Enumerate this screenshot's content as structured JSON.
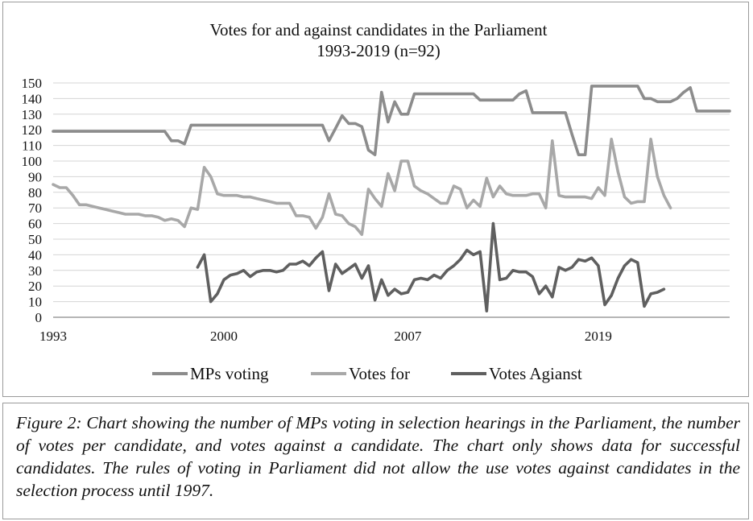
{
  "caption": "Figure 2: Chart showing the number of MPs voting in selection hearings in the Parliament, the number of votes per candidate, and votes against a candidate. The chart only shows data for successful candidates. The rules of voting in Parliament did not allow the use votes against candidates in the selection process until 1997.",
  "chart_data": {
    "type": "line",
    "title": "Votes for and against candidates in the Parliament",
    "subtitle": "1993-2019 (n=92)",
    "xlabel": "",
    "ylabel": "",
    "ylim": [
      0,
      150
    ],
    "yticks": [
      0,
      10,
      20,
      30,
      40,
      50,
      60,
      70,
      80,
      90,
      100,
      110,
      120,
      130,
      140,
      150
    ],
    "xtick_labels": [
      {
        "index": 0,
        "label": "1993"
      },
      {
        "index": 26,
        "label": "2000"
      },
      {
        "index": 54,
        "label": "2007"
      },
      {
        "index": 83,
        "label": "2019"
      }
    ],
    "n_points": 104,
    "grid": true,
    "legend_position": "bottom",
    "series": [
      {
        "name": "MPs voting",
        "color": "#8c8c8c",
        "start_index": 0,
        "values": [
          119,
          119,
          119,
          119,
          119,
          119,
          119,
          119,
          119,
          119,
          119,
          119,
          119,
          119,
          119,
          119,
          119,
          119,
          113,
          113,
          111,
          123,
          123,
          123,
          123,
          123,
          123,
          123,
          123,
          123,
          123,
          123,
          123,
          123,
          123,
          123,
          123,
          123,
          123,
          123,
          123,
          123,
          113,
          121,
          129,
          124,
          124,
          122,
          107,
          104,
          144,
          125,
          138,
          130,
          130,
          143,
          143,
          143,
          143,
          143,
          143,
          143,
          143,
          143,
          143,
          139,
          139,
          139,
          139,
          139,
          139,
          143,
          145,
          131,
          131,
          131,
          131,
          131,
          131,
          117,
          104,
          104,
          148,
          148,
          148,
          148,
          148,
          148,
          148,
          148,
          140,
          140,
          138,
          138,
          138,
          140,
          144,
          147,
          132,
          132,
          132,
          132,
          132,
          132
        ]
      },
      {
        "name": "Votes for",
        "color": "#a8a8a8",
        "start_index": 0,
        "values": [
          85,
          83,
          83,
          78,
          72,
          72,
          71,
          70,
          69,
          68,
          67,
          66,
          66,
          66,
          65,
          65,
          64,
          62,
          63,
          62,
          58,
          70,
          69,
          96,
          90,
          79,
          78,
          78,
          78,
          77,
          77,
          76,
          75,
          74,
          73,
          73,
          73,
          65,
          65,
          64,
          57,
          64,
          79,
          66,
          65,
          60,
          58,
          53,
          82,
          76,
          71,
          92,
          81,
          100,
          100,
          84,
          81,
          79,
          76,
          73,
          73,
          84,
          82,
          70,
          75,
          71,
          89,
          77,
          84,
          79,
          78,
          78,
          78,
          79,
          79,
          70,
          113,
          78,
          77,
          77,
          77,
          77,
          76,
          83,
          78,
          114,
          93,
          77,
          73,
          74,
          74,
          114,
          90,
          78,
          70
        ]
      },
      {
        "name": "Votes Agianst",
        "color": "#5f5f5f",
        "start_index": 22,
        "values": [
          32,
          40,
          10,
          15,
          24,
          27,
          28,
          30,
          26,
          29,
          30,
          30,
          29,
          30,
          34,
          34,
          36,
          33,
          38,
          42,
          17,
          34,
          28,
          31,
          34,
          25,
          33,
          11,
          24,
          14,
          18,
          15,
          16,
          24,
          25,
          24,
          27,
          25,
          30,
          33,
          37,
          43,
          40,
          42,
          4,
          60,
          24,
          25,
          30,
          29,
          29,
          26,
          15,
          20,
          13,
          32,
          30,
          32,
          37,
          36,
          38,
          33,
          8,
          14,
          25,
          33,
          37,
          35,
          7,
          15,
          16,
          18
        ]
      }
    ]
  }
}
